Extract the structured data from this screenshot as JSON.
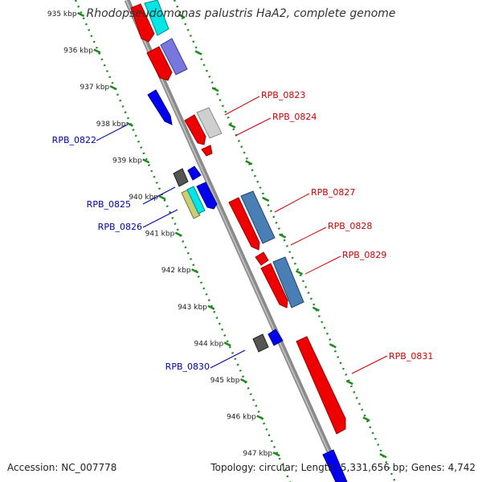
{
  "title": "Rhodopseudomonas palustris HaA2, complete genome",
  "footer": {
    "accession": "Accession: NC_007778",
    "topology": "Topology: circular; Length: 5,331,656 bp; Genes: 4,742"
  },
  "colors": {
    "backbone": "#8c8c8c",
    "ruler": "#1e8a1e",
    "label_red": "#cc0000",
    "label_blue": "#0000aa"
  },
  "ruler_labels": [
    "935 kbp",
    "936 kbp",
    "937 kbp",
    "938 kbp",
    "939 kbp",
    "940 kbp",
    "941 kbp",
    "942 kbp",
    "943 kbp",
    "944 kbp",
    "945 kbp",
    "946 kbp",
    "947 kbp"
  ],
  "gene_labels": {
    "rpb_0822": "RPB_0822",
    "rpb_0823": "RPB_0823",
    "rpb_0824": "RPB_0824",
    "rpb_0825": "RPB_0825",
    "rpb_0826": "RPB_0826",
    "rpb_0827": "RPB_0827",
    "rpb_0828": "RPB_0828",
    "rpb_0829": "RPB_0829",
    "rpb_0830": "RPB_0830",
    "rpb_0831": "RPB_0831"
  }
}
